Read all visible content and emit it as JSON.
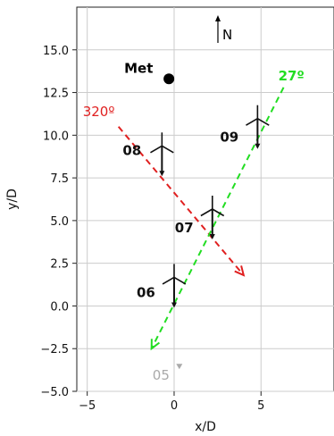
{
  "chart_data": {
    "type": "scatter",
    "xlabel": "x/D",
    "ylabel": "y/D",
    "xlim": [
      -5.6,
      9.2
    ],
    "ylim": [
      -5.0,
      17.5
    ],
    "xticks": [
      -5,
      0,
      5
    ],
    "yticks": [
      -5.0,
      -2.5,
      0.0,
      2.5,
      5.0,
      7.5,
      10.0,
      12.5,
      15.0
    ],
    "grid": true,
    "north_label": "N",
    "colors": {
      "direction_320": "#e02020",
      "direction_27": "#22dd22",
      "turbine": "#111111",
      "turbine_05": "#aaaaaa",
      "grid": "#cccccc"
    },
    "met_mast": {
      "label": "Met",
      "x": -0.3,
      "y": 13.3
    },
    "turbines": [
      {
        "label": "05",
        "x": 0.3,
        "y": -3.6,
        "faded": true
      },
      {
        "label": "06",
        "x": 0.0,
        "y": 0.0,
        "faded": false
      },
      {
        "label": "07",
        "x": 2.2,
        "y": 4.0,
        "faded": false
      },
      {
        "label": "08",
        "x": -0.7,
        "y": 7.7,
        "faded": false
      },
      {
        "label": "09",
        "x": 4.8,
        "y": 9.3,
        "faded": false
      }
    ],
    "directions": [
      {
        "label": "320º",
        "x0": -3.2,
        "y0": 10.5,
        "x1": 4.0,
        "y1": 1.8
      },
      {
        "label": "27º",
        "x0": 6.3,
        "y0": 12.8,
        "x1": -1.3,
        "y1": -2.5
      }
    ]
  }
}
